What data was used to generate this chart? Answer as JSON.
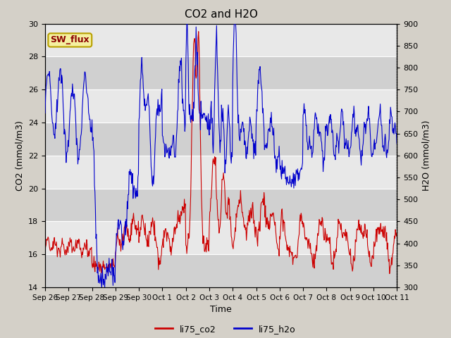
{
  "title": "CO2 and H2O",
  "xlabel": "Time",
  "ylabel_left": "CO2 (mmol/m3)",
  "ylabel_right": "H2O (mmol/m3)",
  "ylim_left": [
    14,
    30
  ],
  "ylim_right": [
    300,
    900
  ],
  "left_yticks": [
    14,
    16,
    18,
    20,
    22,
    24,
    26,
    28,
    30
  ],
  "right_yticks": [
    300,
    350,
    400,
    450,
    500,
    550,
    600,
    650,
    700,
    750,
    800,
    850,
    900
  ],
  "fig_bg_color": "#d4d0c8",
  "plot_bg_color": "#dcdcdc",
  "band_color_light": "#e8e8e8",
  "band_color_dark": "#d0d0d0",
  "line_color_co2": "#cc0000",
  "line_color_h2o": "#0000cc",
  "legend_label_co2": "li75_co2",
  "legend_label_h2o": "li75_h2o",
  "annotation_text": "SW_flux",
  "annotation_color": "#8b0000",
  "annotation_bg": "#f5f0a0",
  "annotation_border": "#b8a000",
  "grid_color": "#ffffff"
}
